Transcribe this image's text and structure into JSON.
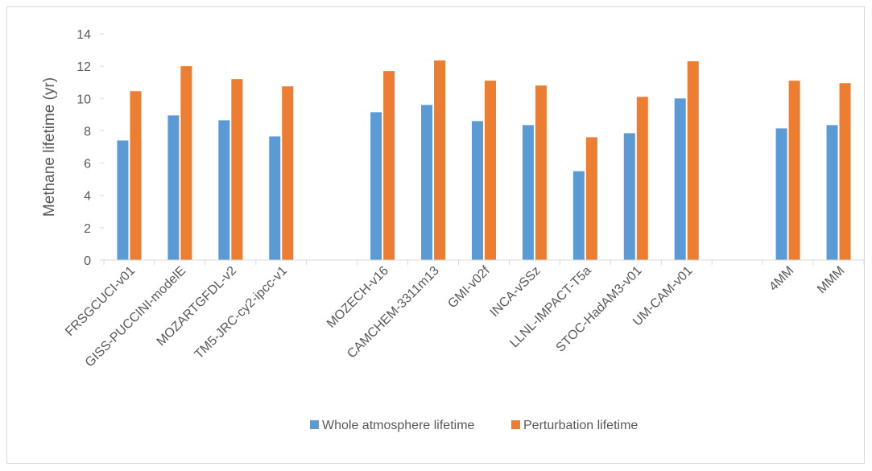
{
  "chart_data": {
    "type": "bar",
    "title": "",
    "xlabel": "",
    "ylabel": "Methane lifetime (yr)",
    "ylim": [
      0,
      14
    ],
    "yticks": [
      0,
      2,
      4,
      6,
      8,
      10,
      12,
      14
    ],
    "grid": false,
    "legend_position": "bottom",
    "categories": [
      "FRSGCUCI-v01",
      "GISS-PUCCINI-modelE",
      "MOZARTGFDL-v2",
      "TM5-JRC-cy2-ipcc-v1",
      "",
      "MOZECH-v16",
      "CAMCHEM-3311m13",
      "GMI-v02f",
      "INCA-vSSz",
      "LLNL-IMPACT-T5a",
      "STOC-HadAM3-v01",
      "UM-CAM-v01",
      "",
      "4MM",
      "MMM"
    ],
    "series": [
      {
        "name": "Whole atmosphere lifetime",
        "color": "#5b9bd5",
        "values": [
          7.4,
          8.95,
          8.65,
          7.65,
          null,
          9.15,
          9.6,
          8.6,
          8.35,
          5.5,
          7.85,
          10.0,
          null,
          8.15,
          8.35
        ]
      },
      {
        "name": "Perturbation lifetime",
        "color": "#ed7d31",
        "values": [
          10.45,
          12.0,
          11.2,
          10.75,
          null,
          11.7,
          12.35,
          11.1,
          10.8,
          7.6,
          10.1,
          12.3,
          null,
          11.1,
          10.95
        ]
      }
    ]
  }
}
